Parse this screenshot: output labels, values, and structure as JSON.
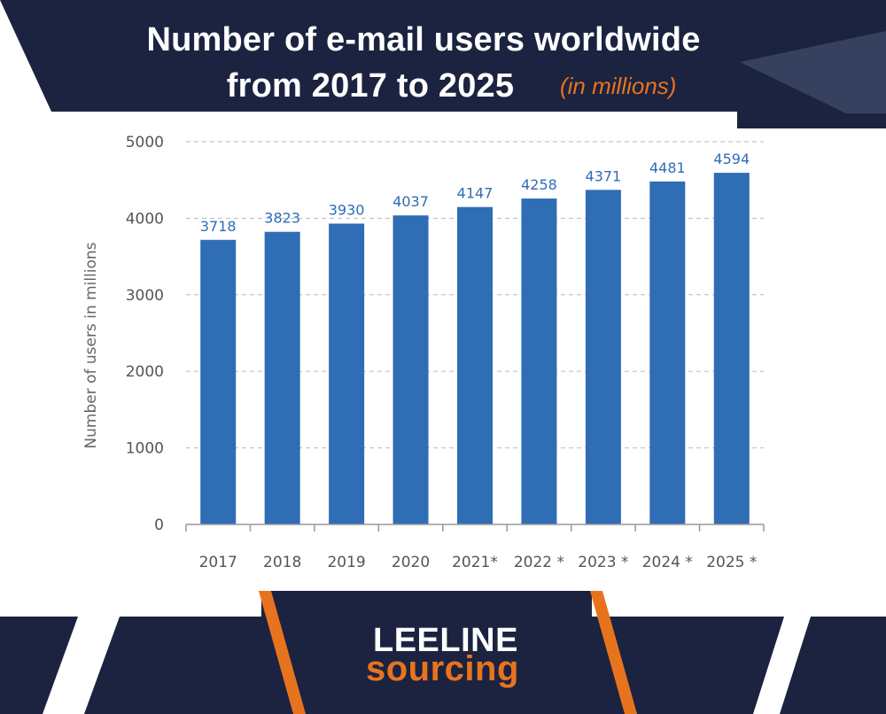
{
  "header": {
    "title_line1": "Number of e-mail users worldwide",
    "title_line2": "from 2017 to 2025",
    "subtitle": "(in millions)"
  },
  "logo": {
    "line1": "LEELINE",
    "line2": "sourcing"
  },
  "colors": {
    "navy": "#1b2340",
    "bar": "#2f6db5",
    "accent_orange": "#e8731e",
    "label_blue": "#2f6db5",
    "grid": "#bbbbbb"
  },
  "chart_data": {
    "type": "bar",
    "title": "Number of e-mail users worldwide from 2017 to 2025",
    "subtitle": "(in millions)",
    "xlabel": "",
    "ylabel": "Number of users in millions",
    "categories": [
      "2017",
      "2018",
      "2019",
      "2020",
      "2021*",
      "2022 *",
      "2023 *",
      "2024 *",
      "2025 *"
    ],
    "values": [
      3718,
      3823,
      3930,
      4037,
      4147,
      4258,
      4371,
      4481,
      4594
    ],
    "data_labels": [
      "3718",
      "3823",
      "3930",
      "4037",
      "4147",
      "4258",
      "4371",
      "4481",
      "4594"
    ],
    "yticks": [
      0,
      1000,
      2000,
      3000,
      4000,
      5000
    ],
    "ylim": [
      0,
      5000
    ],
    "grid": true,
    "legend": "none"
  }
}
